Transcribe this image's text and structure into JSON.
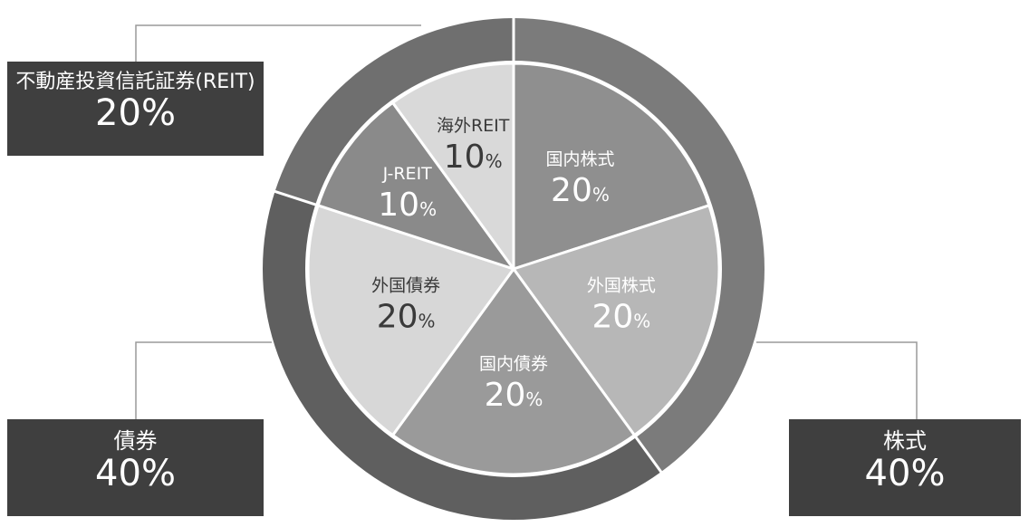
{
  "chart_data": {
    "type": "pie",
    "inner": [
      {
        "label": "国内株式",
        "value": 20,
        "unit": "%",
        "fill": "#8f8f8f",
        "text": "#ffffff"
      },
      {
        "label": "外国株式",
        "value": 20,
        "unit": "%",
        "fill": "#b7b7b7",
        "text": "#ffffff"
      },
      {
        "label": "国内債券",
        "value": 20,
        "unit": "%",
        "fill": "#9a9a9a",
        "text": "#ffffff"
      },
      {
        "label": "外国債券",
        "value": 20,
        "unit": "%",
        "fill": "#d7d7d7",
        "text": "#3a3a3a"
      },
      {
        "label": "J-REIT",
        "value": 10,
        "unit": "%",
        "fill": "#8a8a8a",
        "text": "#ffffff"
      },
      {
        "label": "海外REIT",
        "value": 10,
        "unit": "%",
        "fill": "#d9d9d9",
        "text": "#3a3a3a"
      }
    ],
    "outer": [
      {
        "label": "株式",
        "value": 40,
        "pct_text": "40%",
        "fill": "#7b7b7b"
      },
      {
        "label": "債券",
        "value": 40,
        "pct_text": "40%",
        "fill": "#5f5f5f"
      },
      {
        "label": "不動産投資信託証券(REIT)",
        "value": 20,
        "pct_text": "20%",
        "fill": "#6f6f6f"
      }
    ],
    "start_angle_deg": 0,
    "direction": "clockwise",
    "legend": "none",
    "callouts": {
      "reit": "top-left",
      "bonds": "bottom-left",
      "stocks": "bottom-right"
    },
    "colors": {
      "callout_box": "#3f3f3f",
      "callout_text": "#ffffff",
      "leader_line": "#9a9a9a",
      "separator": "#ffffff"
    }
  }
}
